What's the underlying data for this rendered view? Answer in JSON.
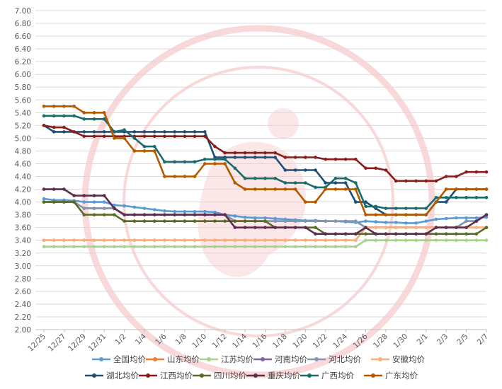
{
  "chart_data": {
    "type": "line",
    "title": "",
    "xlabel": "",
    "ylabel": "",
    "ylim": [
      2.0,
      7.0
    ],
    "y_ticks": [
      "7.00",
      "6.80",
      "6.60",
      "6.40",
      "6.20",
      "6.00",
      "5.80",
      "5.60",
      "5.40",
      "5.20",
      "5.00",
      "4.80",
      "4.60",
      "4.40",
      "4.20",
      "4.00",
      "3.80",
      "3.60",
      "3.40",
      "3.20",
      "3.00",
      "2.80",
      "2.60",
      "2.40",
      "2.20",
      "2.00"
    ],
    "x": [
      "12/25",
      "12/26",
      "12/27",
      "12/28",
      "12/29",
      "12/30",
      "12/31",
      "1/1",
      "1/2",
      "1/3",
      "1/4",
      "1/5",
      "1/6",
      "1/7",
      "1/8",
      "1/9",
      "1/10",
      "1/11",
      "1/12",
      "1/13",
      "1/14",
      "1/15",
      "1/16",
      "1/17",
      "1/18",
      "1/19",
      "1/20",
      "1/21",
      "1/22",
      "1/23",
      "1/24",
      "1/25",
      "1/26",
      "1/27",
      "1/28",
      "1/29",
      "1/30",
      "1/31",
      "2/1",
      "2/2",
      "2/3",
      "2/4",
      "2/5",
      "2/6",
      "2/7"
    ],
    "x_tick_labels": [
      "12/25",
      "12/27",
      "12/29",
      "12/31",
      "1/2",
      "1/4",
      "1/6",
      "1/8",
      "1/10",
      "1/12",
      "1/14",
      "1/16",
      "1/18",
      "1/20",
      "1/22",
      "1/24",
      "1/26",
      "1/28",
      "1/30",
      "2/1",
      "2/3",
      "2/5",
      "2/7"
    ],
    "grid": true,
    "legend_position": "bottom",
    "series": [
      {
        "name": "全国均价",
        "color": "#5b9bd5",
        "values": [
          4.05,
          4.03,
          4.03,
          4.02,
          4.0,
          4.0,
          4.0,
          3.95,
          3.94,
          3.92,
          3.9,
          3.88,
          3.86,
          3.85,
          3.85,
          3.85,
          3.85,
          3.84,
          3.8,
          3.78,
          3.76,
          3.75,
          3.75,
          3.74,
          3.73,
          3.72,
          3.71,
          3.71,
          3.7,
          3.7,
          3.69,
          3.68,
          3.7,
          3.69,
          3.68,
          3.68,
          3.67,
          3.67,
          3.7,
          3.73,
          3.74,
          3.75,
          3.75,
          3.75,
          3.76
        ]
      },
      {
        "name": "山东均价",
        "color": "#ed7d31",
        "values": [
          3.4,
          3.4,
          3.4,
          3.4,
          3.4,
          3.4,
          3.4,
          3.4,
          3.4,
          3.4,
          3.4,
          3.4,
          3.4,
          3.4,
          3.4,
          3.4,
          3.4,
          3.4,
          3.4,
          3.4,
          3.4,
          3.4,
          3.4,
          3.4,
          3.4,
          3.4,
          3.4,
          3.4,
          3.4,
          3.4,
          3.4,
          3.4,
          3.6,
          3.6,
          3.6,
          3.6,
          3.6,
          3.6,
          3.6,
          3.6,
          3.6,
          3.6,
          3.6,
          3.6,
          3.6
        ]
      },
      {
        "name": "江苏均价",
        "color": "#a9d18e",
        "values": [
          3.3,
          3.3,
          3.3,
          3.3,
          3.3,
          3.3,
          3.3,
          3.3,
          3.3,
          3.3,
          3.3,
          3.3,
          3.3,
          3.3,
          3.3,
          3.3,
          3.3,
          3.3,
          3.3,
          3.3,
          3.3,
          3.3,
          3.3,
          3.3,
          3.3,
          3.3,
          3.3,
          3.3,
          3.3,
          3.3,
          3.3,
          3.3,
          3.4,
          3.4,
          3.4,
          3.4,
          3.4,
          3.4,
          3.4,
          3.4,
          3.4,
          3.4,
          3.4,
          3.4,
          3.4
        ]
      },
      {
        "name": "河南均价",
        "color": "#8064a2",
        "values": [
          4.0,
          4.0,
          4.0,
          4.0,
          3.9,
          3.9,
          3.9,
          3.9,
          3.8,
          3.8,
          3.8,
          3.8,
          3.8,
          3.8,
          3.8,
          3.8,
          3.8,
          3.8,
          3.8,
          3.7,
          3.7,
          3.7,
          3.7,
          3.7,
          3.7,
          3.7,
          3.7,
          3.7,
          3.7,
          3.7,
          3.7,
          3.7,
          3.6,
          3.6,
          3.6,
          3.6,
          3.6,
          3.6,
          3.6,
          3.6,
          3.6,
          3.6,
          3.7,
          3.7,
          3.8
        ]
      },
      {
        "name": "河北均价",
        "color": "#8497b0",
        "values": [
          4.0,
          4.0,
          4.0,
          4.0,
          3.9,
          3.9,
          3.9,
          3.9,
          3.8,
          3.8,
          3.8,
          3.8,
          3.8,
          3.8,
          3.8,
          3.8,
          3.8,
          3.8,
          3.8,
          3.7,
          3.7,
          3.7,
          3.7,
          3.7,
          3.7,
          3.7,
          3.7,
          3.7,
          3.7,
          3.7,
          3.7,
          3.7,
          3.6,
          3.6,
          3.6,
          3.6,
          3.6,
          3.6,
          3.6,
          3.6,
          3.6,
          3.6,
          3.7,
          3.7,
          3.8
        ]
      },
      {
        "name": "安徽均价",
        "color": "#f4b183",
        "values": [
          3.4,
          3.4,
          3.4,
          3.4,
          3.4,
          3.4,
          3.4,
          3.4,
          3.4,
          3.4,
          3.4,
          3.4,
          3.4,
          3.4,
          3.4,
          3.4,
          3.4,
          3.4,
          3.4,
          3.4,
          3.4,
          3.4,
          3.4,
          3.4,
          3.4,
          3.4,
          3.4,
          3.4,
          3.4,
          3.4,
          3.4,
          3.4,
          3.6,
          3.6,
          3.6,
          3.6,
          3.6,
          3.6,
          3.6,
          3.6,
          3.6,
          3.6,
          3.6,
          3.6,
          3.6
        ]
      },
      {
        "name": "湖北均价",
        "color": "#1f4e79",
        "values": [
          5.2,
          5.1,
          5.1,
          5.1,
          5.1,
          5.1,
          5.1,
          5.1,
          5.1,
          5.1,
          5.1,
          5.1,
          5.1,
          5.1,
          5.1,
          5.1,
          5.1,
          4.7,
          4.7,
          4.7,
          4.7,
          4.7,
          4.7,
          4.7,
          4.5,
          4.5,
          4.5,
          4.5,
          4.3,
          4.3,
          4.3,
          4.0,
          4.0,
          3.9,
          3.8,
          3.8,
          3.8,
          3.8,
          3.8,
          4.0,
          4.0,
          4.2,
          4.2,
          4.2,
          4.2
        ]
      },
      {
        "name": "江西均价",
        "color": "#8b1c1c",
        "values": [
          5.2,
          5.17,
          5.17,
          5.1,
          5.03,
          5.03,
          5.03,
          5.03,
          5.03,
          5.03,
          5.03,
          5.03,
          5.03,
          5.03,
          5.03,
          5.03,
          5.03,
          4.87,
          4.77,
          4.77,
          4.77,
          4.77,
          4.77,
          4.77,
          4.7,
          4.7,
          4.7,
          4.7,
          4.67,
          4.67,
          4.67,
          4.67,
          4.53,
          4.53,
          4.5,
          4.33,
          4.33,
          4.33,
          4.33,
          4.33,
          4.4,
          4.4,
          4.47,
          4.47,
          4.47
        ]
      },
      {
        "name": "四川均价",
        "color": "#5a6b24",
        "values": [
          4.0,
          4.0,
          4.0,
          4.0,
          3.8,
          3.8,
          3.8,
          3.8,
          3.7,
          3.7,
          3.7,
          3.7,
          3.7,
          3.7,
          3.7,
          3.7,
          3.7,
          3.7,
          3.7,
          3.7,
          3.7,
          3.7,
          3.7,
          3.6,
          3.6,
          3.6,
          3.6,
          3.6,
          3.5,
          3.5,
          3.5,
          3.5,
          3.5,
          3.5,
          3.5,
          3.5,
          3.5,
          3.5,
          3.5,
          3.5,
          3.5,
          3.5,
          3.5,
          3.5,
          3.6
        ]
      },
      {
        "name": "重庆均价",
        "color": "#5e2c4c",
        "values": [
          4.2,
          4.2,
          4.2,
          4.1,
          4.1,
          4.1,
          4.1,
          3.9,
          3.8,
          3.8,
          3.8,
          3.8,
          3.8,
          3.8,
          3.8,
          3.8,
          3.8,
          3.8,
          3.8,
          3.6,
          3.6,
          3.6,
          3.6,
          3.6,
          3.6,
          3.6,
          3.6,
          3.5,
          3.5,
          3.5,
          3.5,
          3.5,
          3.6,
          3.5,
          3.5,
          3.5,
          3.5,
          3.5,
          3.5,
          3.6,
          3.6,
          3.6,
          3.6,
          3.7,
          3.8
        ]
      },
      {
        "name": "广西均价",
        "color": "#1a6b6b",
        "values": [
          5.35,
          5.35,
          5.35,
          5.35,
          5.3,
          5.3,
          5.3,
          5.1,
          5.13,
          5.0,
          4.87,
          4.87,
          4.63,
          4.63,
          4.63,
          4.63,
          4.67,
          4.67,
          4.67,
          4.53,
          4.37,
          4.37,
          4.37,
          4.37,
          4.3,
          4.3,
          4.3,
          4.23,
          4.23,
          4.37,
          4.37,
          4.3,
          3.93,
          3.93,
          3.9,
          3.9,
          3.9,
          3.9,
          3.9,
          4.07,
          4.07,
          4.07,
          4.07,
          4.07,
          4.07
        ]
      },
      {
        "name": "广东均价",
        "color": "#b35a00",
        "values": [
          5.5,
          5.5,
          5.5,
          5.5,
          5.4,
          5.4,
          5.4,
          5.0,
          5.0,
          4.8,
          4.8,
          4.8,
          4.4,
          4.4,
          4.4,
          4.4,
          4.6,
          4.6,
          4.6,
          4.3,
          4.2,
          4.2,
          4.2,
          4.2,
          4.2,
          4.2,
          4.0,
          4.0,
          4.2,
          4.2,
          4.2,
          4.2,
          3.8,
          3.8,
          3.8,
          3.8,
          3.8,
          3.8,
          3.8,
          4.0,
          4.2,
          4.2,
          4.2,
          4.2,
          4.2
        ]
      }
    ],
    "legend_rows": [
      [
        0,
        1,
        2,
        3,
        4,
        5
      ],
      [
        6,
        7,
        8,
        9,
        10,
        11
      ]
    ]
  }
}
